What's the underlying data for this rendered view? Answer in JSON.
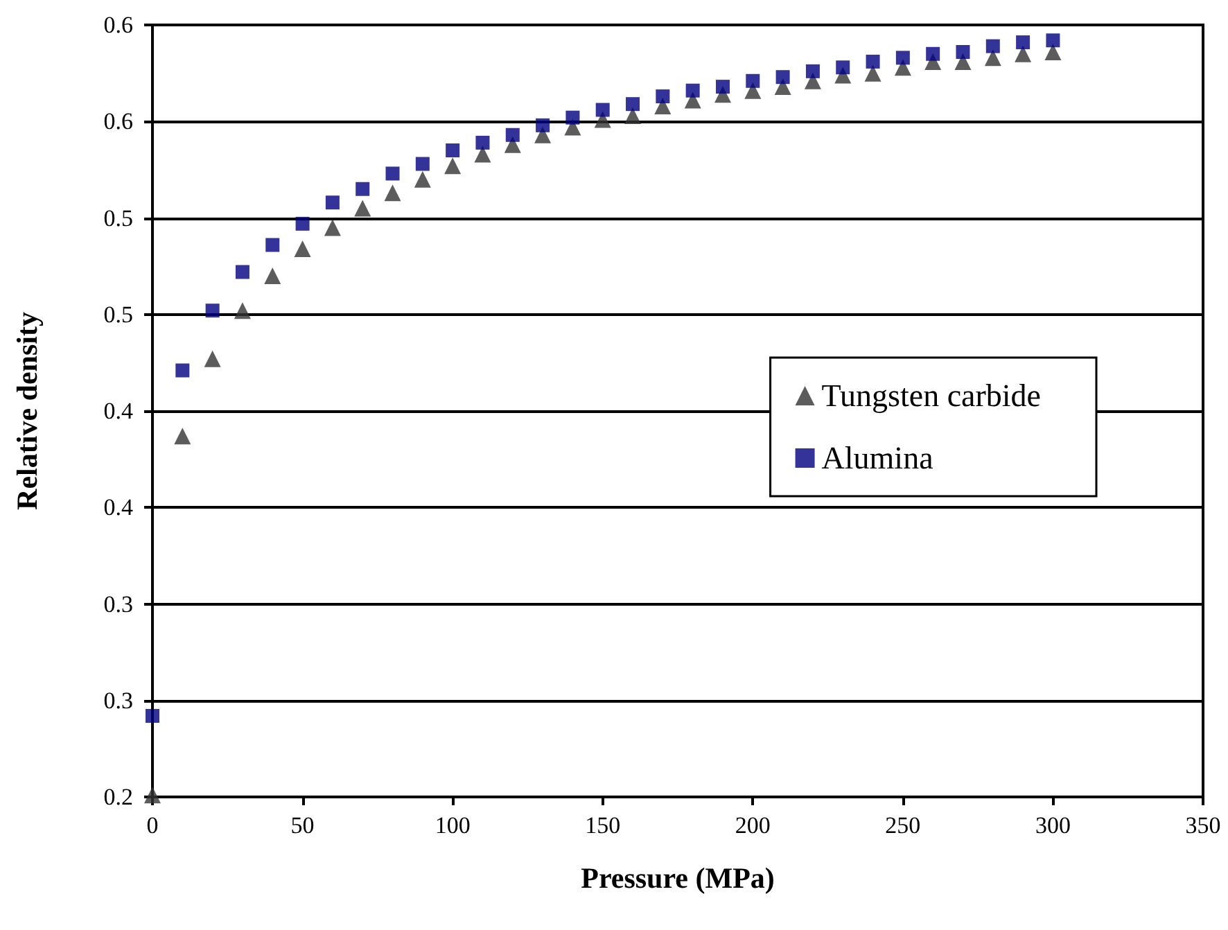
{
  "chart_data": {
    "type": "scatter",
    "xlabel": "Pressure (MPa)",
    "ylabel": "Relative density",
    "x": [
      0,
      10,
      20,
      30,
      40,
      50,
      60,
      70,
      80,
      90,
      100,
      110,
      120,
      130,
      140,
      150,
      160,
      170,
      180,
      190,
      200,
      210,
      220,
      230,
      240,
      250,
      260,
      270,
      280,
      290,
      300
    ],
    "series": [
      {
        "name": "Tungsten carbide",
        "color": "#333333",
        "marker": "triangle",
        "values": [
          0.201,
          0.387,
          0.427,
          0.452,
          0.47,
          0.484,
          0.495,
          0.505,
          0.513,
          0.52,
          0.527,
          0.533,
          0.538,
          0.543,
          0.547,
          0.551,
          0.553,
          0.558,
          0.561,
          0.564,
          0.566,
          0.568,
          0.571,
          0.574,
          0.575,
          0.578,
          0.581,
          0.581,
          0.583,
          0.585,
          0.586
        ]
      },
      {
        "name": "Alumina",
        "color": "#000080",
        "marker": "square",
        "values": [
          0.242,
          0.421,
          0.452,
          0.472,
          0.486,
          0.497,
          0.508,
          0.515,
          0.523,
          0.528,
          0.535,
          0.539,
          0.543,
          0.548,
          0.552,
          0.556,
          0.559,
          0.563,
          0.566,
          0.568,
          0.571,
          0.573,
          0.576,
          0.578,
          0.581,
          0.583,
          0.585,
          0.586,
          0.589,
          0.591,
          0.592
        ]
      }
    ],
    "xlim": [
      0,
      350
    ],
    "xticks": [
      0,
      50,
      100,
      150,
      200,
      250,
      300,
      350
    ],
    "ylim": [
      0.2,
      0.6
    ],
    "yticks": [
      0.2,
      {
        "value": 0.25,
        "label": "0.3"
      },
      0.3,
      {
        "value": 0.35,
        "label": "0.4"
      },
      0.4,
      {
        "value": 0.45,
        "label": "0.5"
      },
      0.5,
      {
        "value": 0.55,
        "label": "0.6"
      },
      0.6
    ],
    "grid": "y",
    "legend": "right"
  }
}
